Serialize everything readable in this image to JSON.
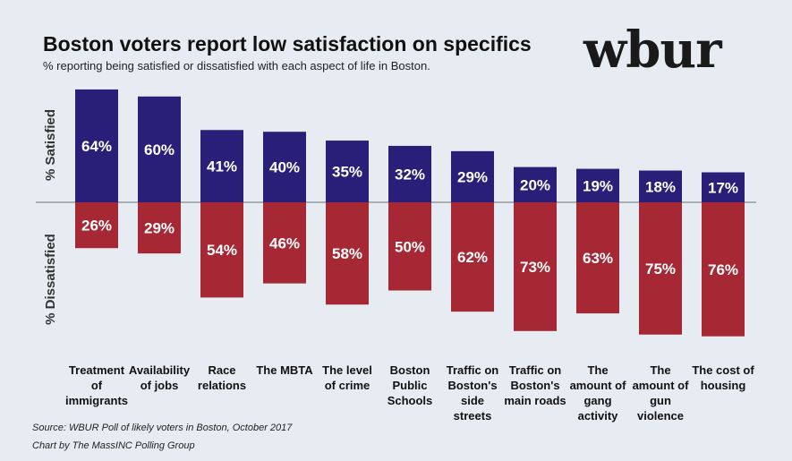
{
  "title": "Boston voters report low satisfaction on specifics",
  "subtitle": "% reporting being satisfied or dissatisfied with each aspect of life in Boston.",
  "logo": "wbur",
  "source": "Source: WBUR Poll of likely voters in Boston, October 2017",
  "credit": "Chart by The MassINC Polling Group",
  "colors": {
    "satisfied": "#2a1f78",
    "dissatisfied": "#a62834",
    "background": "#e6ecf1"
  },
  "chart_data": {
    "type": "bar",
    "title": "Boston voters report low satisfaction on specifics",
    "satisfied_axis_label": "% Satisfied",
    "dissatisfied_axis_label": "% Dissatisfied",
    "categories": [
      [
        "Treatment",
        "of",
        "immigrants"
      ],
      [
        "Availability",
        "of jobs"
      ],
      [
        "Race",
        "relations"
      ],
      [
        "The MBTA"
      ],
      [
        "The level",
        "of crime"
      ],
      [
        "Boston",
        "Public",
        "Schools"
      ],
      [
        "Traffic on",
        "Boston's",
        "side",
        "streets"
      ],
      [
        "Traffic on",
        "Boston's",
        "main roads"
      ],
      [
        "The",
        "amount of",
        "gang",
        "activity"
      ],
      [
        "The",
        "amount of",
        "gun",
        "violence"
      ],
      [
        "The cost of",
        "housing"
      ]
    ],
    "series": [
      {
        "name": "Satisfied",
        "values": [
          64,
          60,
          41,
          40,
          35,
          32,
          29,
          20,
          19,
          18,
          17
        ]
      },
      {
        "name": "Dissatisfied",
        "values": [
          26,
          29,
          54,
          46,
          58,
          50,
          62,
          73,
          63,
          75,
          76
        ]
      }
    ],
    "value_format": "{v}%"
  }
}
